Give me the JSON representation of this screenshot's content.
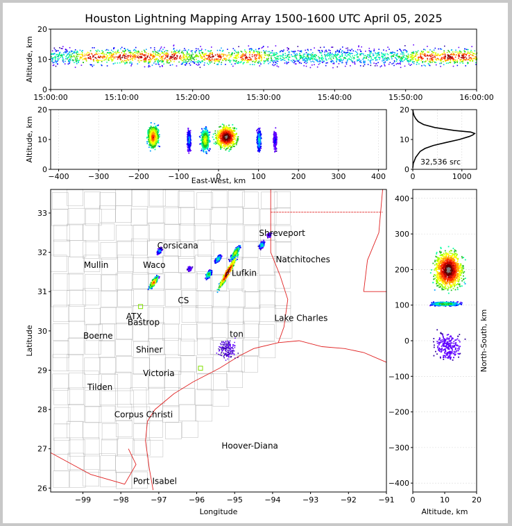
{
  "title": "Houston Lightning Mapping Array 1500-1600 UTC April 05, 2025",
  "colors": {
    "density": [
      "#3000a0",
      "#6000ff",
      "#0000ff",
      "#00a0ff",
      "#00ffa0",
      "#20c020",
      "#a0ff00",
      "#ffff00",
      "#ffa000",
      "#ff3000",
      "#c00000",
      "#600000",
      "#808080",
      "#ffffff"
    ],
    "state_border": "#e02020",
    "county_border": "#b8b8b8",
    "network_orange": "#ff9040",
    "network_blue": "#2020ff",
    "network_gold": "#e8b000",
    "network_green": "#80e000"
  },
  "chart_data": [
    {
      "panel": "altitude-vs-time",
      "type": "heatmap",
      "ylabel": "Altitude, km",
      "ylim": [
        0,
        20
      ],
      "yticks": [
        "0",
        "10",
        "20"
      ],
      "xticks": [
        "15:00:00",
        "15:10:00",
        "15:20:00",
        "15:30:00",
        "15:40:00",
        "15:50:00",
        "16:00:00"
      ],
      "x_range_minutes": [
        0,
        60
      ],
      "band_center_km": 11,
      "hot_spots_minutes": [
        6,
        10,
        13,
        17,
        23,
        28,
        53,
        56,
        58
      ]
    },
    {
      "panel": "altitude-vs-east-west",
      "type": "heatmap",
      "xlabel": "East-West, km",
      "ylabel": "Altitude, km",
      "xlim": [
        -420,
        420
      ],
      "ylim": [
        0,
        20
      ],
      "xticks": [
        "−400",
        "−300",
        "−200",
        "−100",
        "0",
        "100",
        "200",
        "300",
        "400"
      ],
      "yticks": [
        "0",
        "10",
        "20"
      ],
      "clusters": [
        {
          "x_km": -165,
          "alt_km": 11,
          "width_km": 30,
          "intensity": 0.8
        },
        {
          "x_km": -75,
          "alt_km": 10,
          "width_km": 10,
          "intensity": 0.3
        },
        {
          "x_km": -35,
          "alt_km": 10,
          "width_km": 25,
          "intensity": 0.6
        },
        {
          "x_km": 18,
          "alt_km": 11,
          "width_km": 60,
          "intensity": 1.0
        },
        {
          "x_km": 100,
          "alt_km": 10,
          "width_km": 12,
          "intensity": 0.35
        },
        {
          "x_km": 140,
          "alt_km": 10,
          "width_km": 10,
          "intensity": 0.2
        }
      ]
    },
    {
      "panel": "altitude-histogram",
      "type": "line",
      "xticks": [
        "0",
        "1000"
      ],
      "yticks": [
        "0",
        "10",
        "20"
      ],
      "xlim": [
        0,
        1300
      ],
      "ylim": [
        0,
        20
      ],
      "source_count": "32,536 src",
      "profile": [
        {
          "alt": 0.5,
          "count": 0
        },
        {
          "alt": 2,
          "count": 10
        },
        {
          "alt": 4,
          "count": 60
        },
        {
          "alt": 6,
          "count": 150
        },
        {
          "alt": 7,
          "count": 250
        },
        {
          "alt": 8,
          "count": 420
        },
        {
          "alt": 9,
          "count": 680
        },
        {
          "alt": 10,
          "count": 950
        },
        {
          "alt": 11,
          "count": 1150
        },
        {
          "alt": 11.5,
          "count": 1220
        },
        {
          "alt": 12,
          "count": 1260
        },
        {
          "alt": 12.5,
          "count": 1180
        },
        {
          "alt": 13,
          "count": 850
        },
        {
          "alt": 14,
          "count": 450
        },
        {
          "alt": 15,
          "count": 220
        },
        {
          "alt": 16,
          "count": 110
        },
        {
          "alt": 17,
          "count": 60
        },
        {
          "alt": 18,
          "count": 25
        },
        {
          "alt": 19,
          "count": 10
        },
        {
          "alt": 20,
          "count": 0
        }
      ]
    },
    {
      "panel": "plan-view-map",
      "type": "scatter",
      "xlabel": "Longitude",
      "ylabel": "Latitude",
      "xlim": [
        -99.85,
        -91.0
      ],
      "ylim": [
        25.9,
        33.6
      ],
      "xticks": [
        -99,
        -98,
        -97,
        -96,
        -95,
        -94,
        -93,
        -92,
        -91
      ],
      "xtick_labels": [
        "−99",
        "−98",
        "−97",
        "−96",
        "−95",
        "−94",
        "−93",
        "−92",
        "−91"
      ],
      "yticks": [
        26,
        27,
        28,
        29,
        30,
        31,
        32,
        33
      ],
      "ytick_labels": [
        "26",
        "27",
        "28",
        "29",
        "30",
        "31",
        "32",
        "33"
      ],
      "cities": [
        {
          "name": "Shreveport",
          "lon": -93.75,
          "lat": 32.42
        },
        {
          "name": "Corsicana",
          "lon": -96.5,
          "lat": 32.1
        },
        {
          "name": "Mullin",
          "lon": -98.65,
          "lat": 31.6
        },
        {
          "name": "Waco",
          "lon": -97.12,
          "lat": 31.6
        },
        {
          "name": "Natchitoches",
          "lon": -93.2,
          "lat": 31.75
        },
        {
          "name": "Lufkin",
          "lon": -94.75,
          "lat": 31.4
        },
        {
          "name": "ATX",
          "lon": -97.65,
          "lat": 30.3
        },
        {
          "name": "CS",
          "lon": -96.35,
          "lat": 30.7
        },
        {
          "name": "Bastrop",
          "lon": -97.4,
          "lat": 30.15
        },
        {
          "name": "Lake Charles",
          "lon": -93.25,
          "lat": 30.25
        },
        {
          "name": "Boerne",
          "lon": -98.6,
          "lat": 29.8
        },
        {
          "name": "ton",
          "lon": -94.95,
          "lat": 29.85
        },
        {
          "name": "Shiner",
          "lon": -97.25,
          "lat": 29.45
        },
        {
          "name": "Victoria",
          "lon": -97.0,
          "lat": 28.85
        },
        {
          "name": "Tilden",
          "lon": -98.55,
          "lat": 28.5
        },
        {
          "name": "Corpus Christi",
          "lon": -97.4,
          "lat": 27.8
        },
        {
          "name": "Hoover-Diana",
          "lon": -94.6,
          "lat": 27.0
        },
        {
          "name": "Port Isabel",
          "lon": -97.1,
          "lat": 26.1
        }
      ],
      "storm_cells": [
        {
          "lon": -97.15,
          "lat": 31.25,
          "len": 0.45,
          "angle": 55,
          "intensity": 0.8
        },
        {
          "lon": -95.2,
          "lat": 31.5,
          "len": 1.2,
          "angle": 60,
          "intensity": 1.0
        },
        {
          "lon": -95.7,
          "lat": 31.45,
          "len": 0.3,
          "angle": 60,
          "intensity": 0.5
        },
        {
          "lon": -95.0,
          "lat": 32.0,
          "len": 0.5,
          "angle": 55,
          "intensity": 0.6
        },
        {
          "lon": -95.45,
          "lat": 31.85,
          "len": 0.3,
          "angle": 55,
          "intensity": 0.4
        },
        {
          "lon": -97.0,
          "lat": 32.05,
          "len": 0.25,
          "angle": 60,
          "intensity": 0.3
        },
        {
          "lon": -94.3,
          "lat": 32.2,
          "len": 0.25,
          "angle": 60,
          "intensity": 0.4
        },
        {
          "lon": -94.1,
          "lat": 32.45,
          "len": 0.15,
          "angle": 60,
          "intensity": 0.2
        },
        {
          "lon": -96.2,
          "lat": 31.6,
          "len": 0.15,
          "angle": 60,
          "intensity": 0.2
        }
      ]
    },
    {
      "panel": "north-south-vs-altitude",
      "type": "heatmap",
      "xlabel": "Altitude, km",
      "ylabel": "North-South, km",
      "xlim": [
        0,
        20
      ],
      "ylim": [
        -425,
        425
      ],
      "xticks": [
        "0",
        "10",
        "20"
      ],
      "yticks": [
        "−400",
        "−300",
        "−200",
        "−100",
        "0",
        "100",
        "200",
        "300",
        "400"
      ],
      "clusters": [
        {
          "ns_km": 200,
          "alt_km": 11,
          "height_km": 120,
          "intensity": 1.0
        },
        {
          "ns_km": 105,
          "alt_km": 10,
          "height_km": 12,
          "intensity": 0.5
        },
        {
          "ns_km": -15,
          "alt_km": 11,
          "height_km": 90,
          "intensity": 0.15
        }
      ]
    }
  ]
}
